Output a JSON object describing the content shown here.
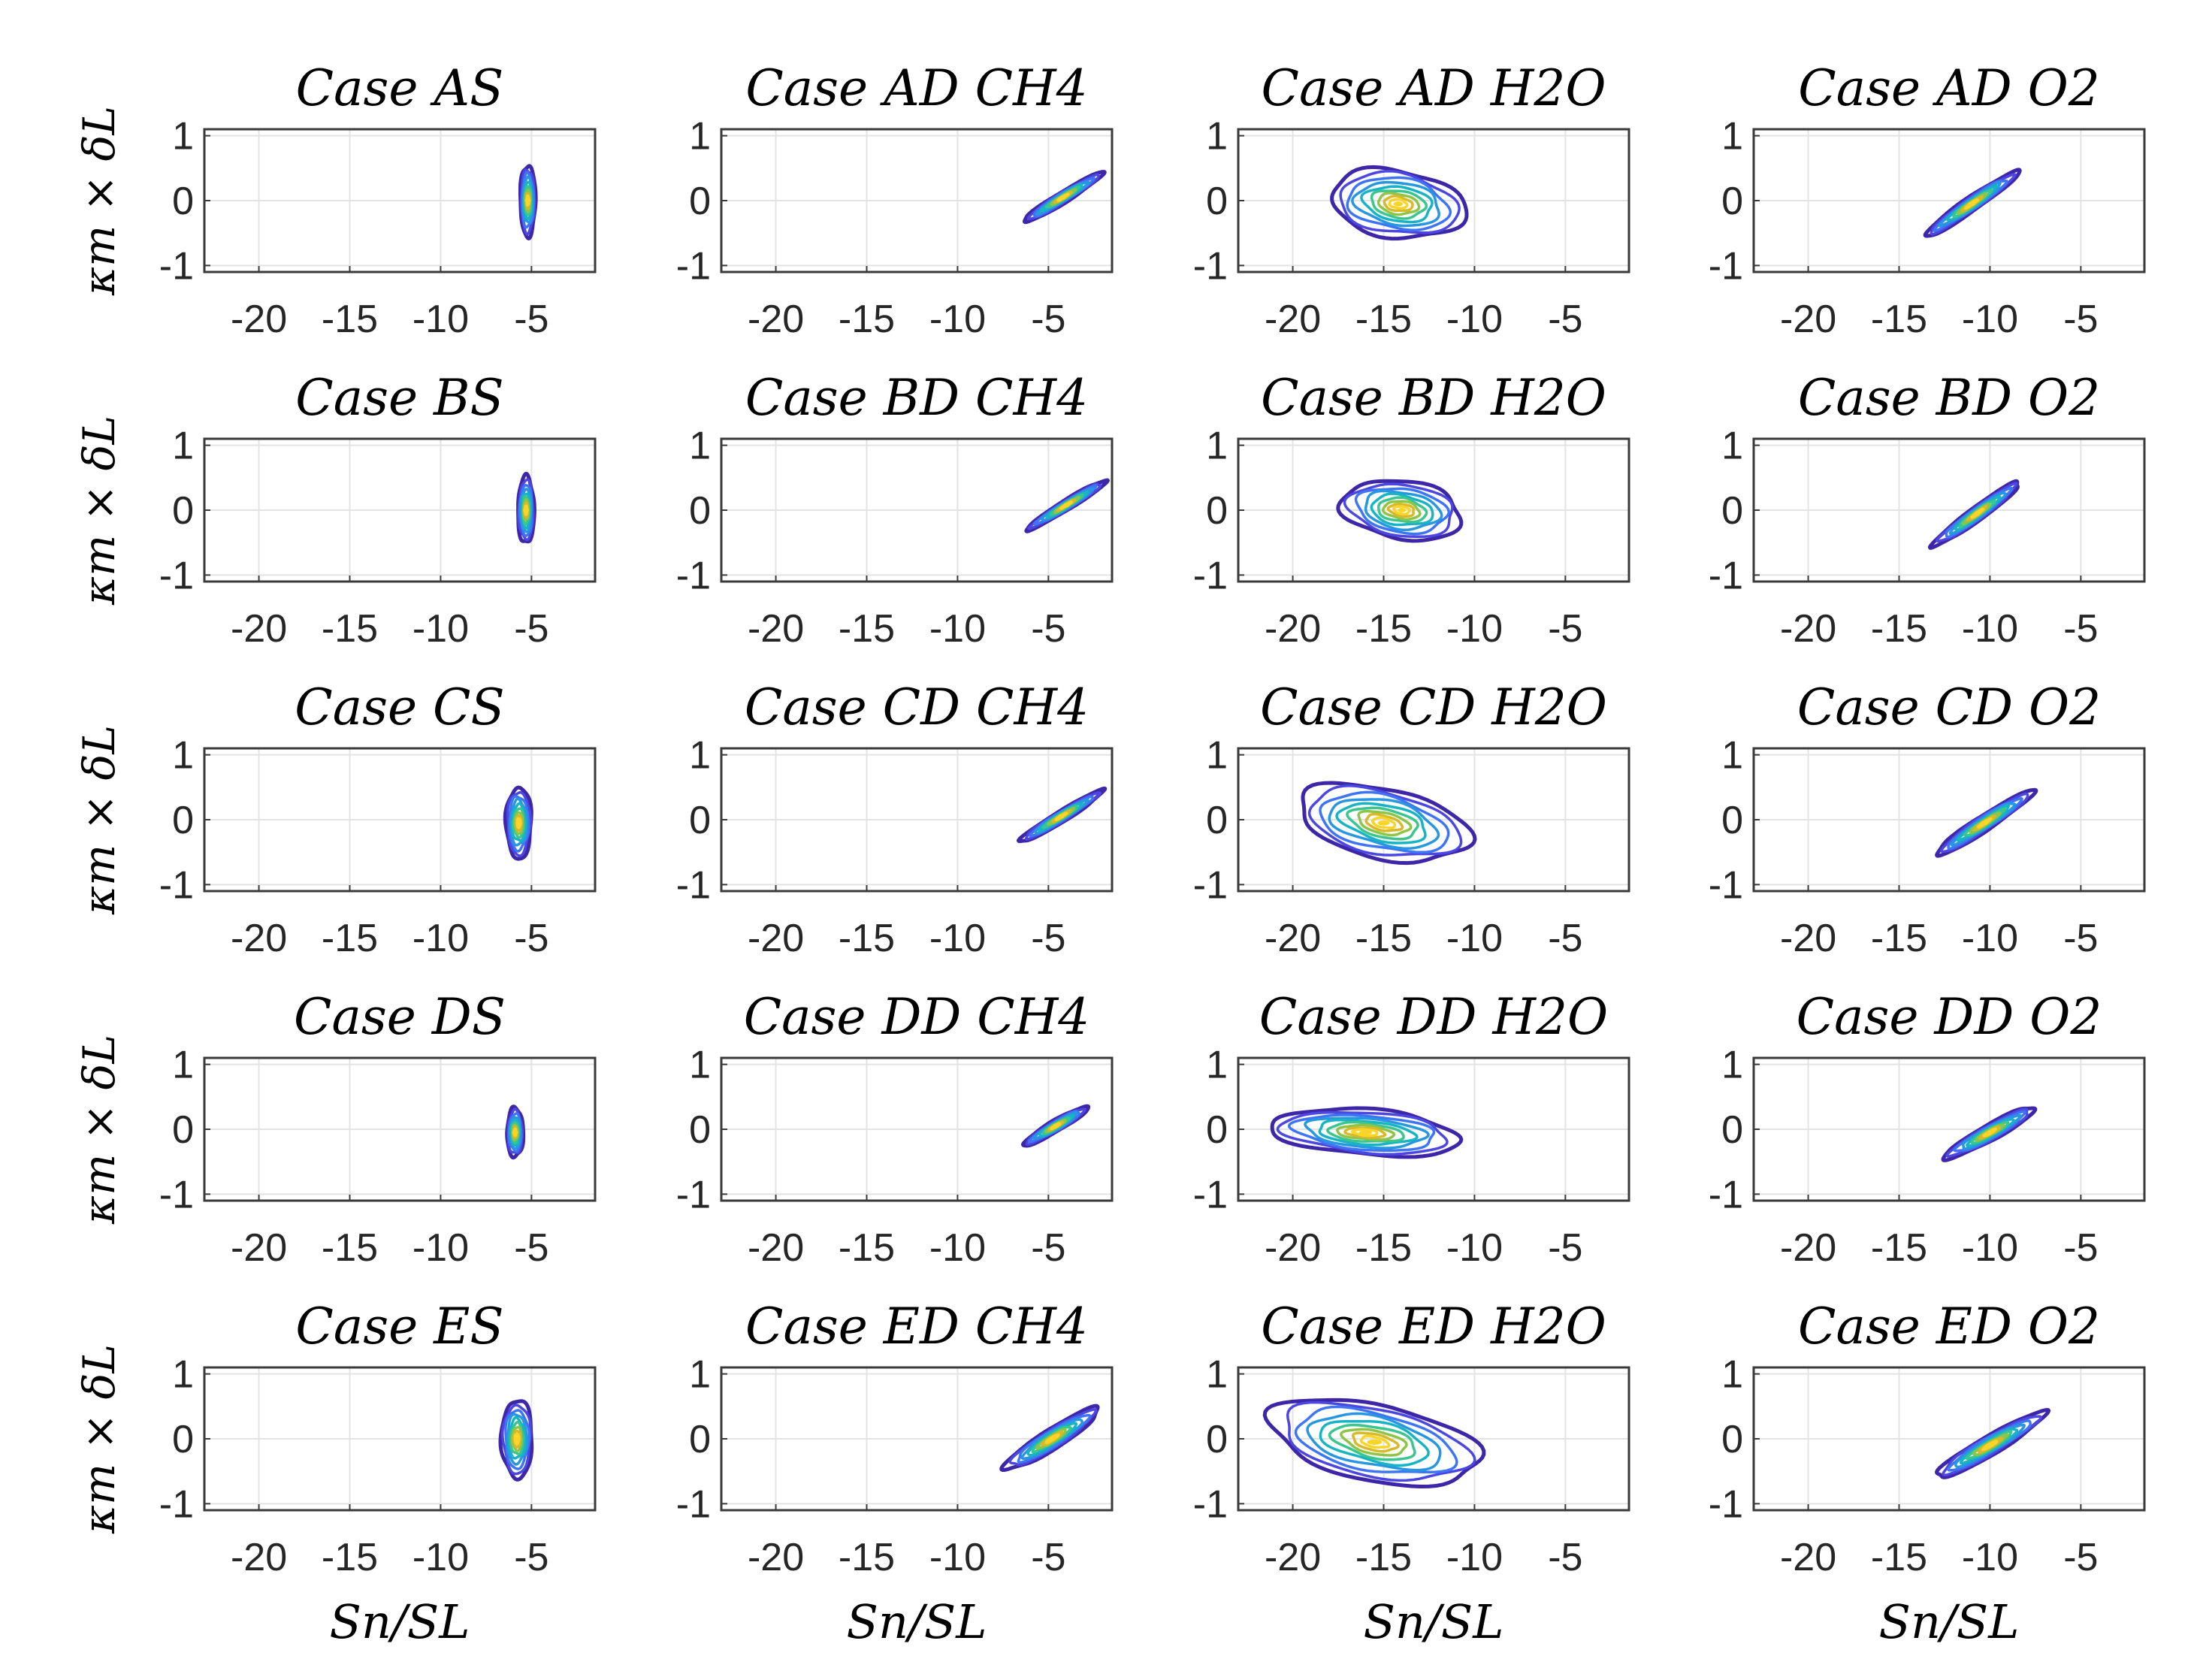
{
  "figure": {
    "x_label": "Sn/SL",
    "y_label": "κm × δL",
    "x_ticks": [
      "-20",
      "-15",
      "-10",
      "-5"
    ],
    "y_ticks": [
      "1",
      "0",
      "-1"
    ]
  },
  "palette": [
    "#3d26a8",
    "#4b47e0",
    "#3e75f6",
    "#2797e0",
    "#18b4c4",
    "#3bc58f",
    "#8ec548",
    "#d8b92a",
    "#f9d52a"
  ],
  "chart_data": [
    {
      "type": "contour",
      "title": "Case AS",
      "xlim": [
        -23,
        -1.5
      ],
      "ylim": [
        -1.1,
        1.1
      ],
      "x_ticks": [
        -20,
        -15,
        -10,
        -5
      ],
      "y_ticks": [
        -1,
        0,
        1
      ],
      "density_center": [
        -5.2,
        0.0
      ],
      "density_spread": [
        0.42,
        0.55
      ],
      "tilt_slope": 0.0
    },
    {
      "type": "contour",
      "title": "Case AD CH4",
      "xlim": [
        -23,
        -1.5
      ],
      "ylim": [
        -1.1,
        1.1
      ],
      "x_ticks": [
        -20,
        -15,
        -10,
        -5
      ],
      "y_ticks": [
        -1,
        0,
        1
      ],
      "density_center": [
        -4.2,
        0.05
      ],
      "density_spread": [
        2.2,
        0.1
      ],
      "tilt_slope": 0.17
    },
    {
      "type": "contour",
      "title": "Case AD H2O",
      "xlim": [
        -23,
        -1.5
      ],
      "ylim": [
        -1.1,
        1.1
      ],
      "x_ticks": [
        -20,
        -15,
        -10,
        -5
      ],
      "y_ticks": [
        -1,
        0,
        1
      ],
      "density_center": [
        -14.2,
        -0.05
      ],
      "density_spread": [
        3.7,
        0.52
      ],
      "tilt_slope": -0.03
    },
    {
      "type": "contour",
      "title": "Case AD O2",
      "xlim": [
        -23,
        -1.5
      ],
      "ylim": [
        -1.1,
        1.1
      ],
      "x_ticks": [
        -20,
        -15,
        -10,
        -5
      ],
      "y_ticks": [
        -1,
        0,
        1
      ],
      "density_center": [
        -11.0,
        -0.05
      ],
      "density_spread": [
        2.6,
        0.13
      ],
      "tilt_slope": 0.19
    },
    {
      "type": "contour",
      "title": "Case BS",
      "xlim": [
        -23,
        -1.5
      ],
      "ylim": [
        -1.1,
        1.1
      ],
      "x_ticks": [
        -20,
        -15,
        -10,
        -5
      ],
      "y_ticks": [
        -1,
        0,
        1
      ],
      "density_center": [
        -5.3,
        0.0
      ],
      "density_spread": [
        0.45,
        0.52
      ],
      "tilt_slope": 0.0
    },
    {
      "type": "contour",
      "title": "Case BD CH4",
      "xlim": [
        -23,
        -1.5
      ],
      "ylim": [
        -1.1,
        1.1
      ],
      "x_ticks": [
        -20,
        -15,
        -10,
        -5
      ],
      "y_ticks": [
        -1,
        0,
        1
      ],
      "density_center": [
        -4.0,
        0.08
      ],
      "density_spread": [
        2.2,
        0.09
      ],
      "tilt_slope": 0.17
    },
    {
      "type": "contour",
      "title": "Case BD H2O",
      "xlim": [
        -23,
        -1.5
      ],
      "ylim": [
        -1.1,
        1.1
      ],
      "x_ticks": [
        -20,
        -15,
        -10,
        -5
      ],
      "y_ticks": [
        -1,
        0,
        1
      ],
      "density_center": [
        -14.0,
        0.0
      ],
      "density_spread": [
        3.3,
        0.45
      ],
      "tilt_slope": -0.03
    },
    {
      "type": "contour",
      "title": "Case BD O2",
      "xlim": [
        -23,
        -1.5
      ],
      "ylim": [
        -1.1,
        1.1
      ],
      "x_ticks": [
        -20,
        -15,
        -10,
        -5
      ],
      "y_ticks": [
        -1,
        0,
        1
      ],
      "density_center": [
        -10.7,
        -0.05
      ],
      "density_spread": [
        2.4,
        0.13
      ],
      "tilt_slope": 0.2
    },
    {
      "type": "contour",
      "title": "Case CS",
      "xlim": [
        -23,
        -1.5
      ],
      "ylim": [
        -1.1,
        1.1
      ],
      "x_ticks": [
        -20,
        -15,
        -10,
        -5
      ],
      "y_ticks": [
        -1,
        0,
        1
      ],
      "density_center": [
        -5.7,
        -0.05
      ],
      "density_spread": [
        0.7,
        0.55
      ],
      "tilt_slope": 0.0
    },
    {
      "type": "contour",
      "title": "Case CD CH4",
      "xlim": [
        -23,
        -1.5
      ],
      "ylim": [
        -1.1,
        1.1
      ],
      "x_ticks": [
        -20,
        -15,
        -10,
        -5
      ],
      "y_ticks": [
        -1,
        0,
        1
      ],
      "density_center": [
        -4.3,
        0.05
      ],
      "density_spread": [
        2.3,
        0.1
      ],
      "tilt_slope": 0.17
    },
    {
      "type": "contour",
      "title": "Case CD H2O",
      "xlim": [
        -23,
        -1.5
      ],
      "ylim": [
        -1.1,
        1.1
      ],
      "x_ticks": [
        -20,
        -15,
        -10,
        -5
      ],
      "y_ticks": [
        -1,
        0,
        1
      ],
      "density_center": [
        -15.0,
        -0.05
      ],
      "density_spread": [
        4.7,
        0.55
      ],
      "tilt_slope": -0.05
    },
    {
      "type": "contour",
      "title": "Case CD O2",
      "xlim": [
        -23,
        -1.5
      ],
      "ylim": [
        -1.1,
        1.1
      ],
      "x_ticks": [
        -20,
        -15,
        -10,
        -5
      ],
      "y_ticks": [
        -1,
        0,
        1
      ],
      "density_center": [
        -10.3,
        -0.05
      ],
      "density_spread": [
        2.7,
        0.14
      ],
      "tilt_slope": 0.18
    },
    {
      "type": "contour",
      "title": "Case DS",
      "xlim": [
        -23,
        -1.5
      ],
      "ylim": [
        -1.1,
        1.1
      ],
      "x_ticks": [
        -20,
        -15,
        -10,
        -5
      ],
      "y_ticks": [
        -1,
        0,
        1
      ],
      "density_center": [
        -5.9,
        -0.05
      ],
      "density_spread": [
        0.45,
        0.38
      ],
      "tilt_slope": 0.0
    },
    {
      "type": "contour",
      "title": "Case DD CH4",
      "xlim": [
        -23,
        -1.5
      ],
      "ylim": [
        -1.1,
        1.1
      ],
      "x_ticks": [
        -20,
        -15,
        -10,
        -5
      ],
      "y_ticks": [
        -1,
        0,
        1
      ],
      "density_center": [
        -4.6,
        0.05
      ],
      "density_spread": [
        1.8,
        0.1
      ],
      "tilt_slope": 0.16
    },
    {
      "type": "contour",
      "title": "Case DD H2O",
      "xlim": [
        -23,
        -1.5
      ],
      "ylim": [
        -1.1,
        1.1
      ],
      "x_ticks": [
        -20,
        -15,
        -10,
        -5
      ],
      "y_ticks": [
        -1,
        0,
        1
      ],
      "density_center": [
        -16.0,
        -0.05
      ],
      "density_spread": [
        5.2,
        0.35
      ],
      "tilt_slope": -0.02
    },
    {
      "type": "contour",
      "title": "Case DD O2",
      "xlim": [
        -23,
        -1.5
      ],
      "ylim": [
        -1.1,
        1.1
      ],
      "x_ticks": [
        -20,
        -15,
        -10,
        -5
      ],
      "y_ticks": [
        -1,
        0,
        1
      ],
      "density_center": [
        -10.0,
        -0.05
      ],
      "density_spread": [
        2.5,
        0.14
      ],
      "tilt_slope": 0.15
    },
    {
      "type": "contour",
      "title": "Case ES",
      "xlim": [
        -23,
        -1.5
      ],
      "ylim": [
        -1.1,
        1.1
      ],
      "x_ticks": [
        -20,
        -15,
        -10,
        -5
      ],
      "y_ticks": [
        -1,
        0,
        1
      ],
      "density_center": [
        -5.8,
        0.0
      ],
      "density_spread": [
        0.85,
        0.6
      ],
      "tilt_slope": 0.0
    },
    {
      "type": "contour",
      "title": "Case ED CH4",
      "xlim": [
        -23,
        -1.5
      ],
      "ylim": [
        -1.1,
        1.1
      ],
      "x_ticks": [
        -20,
        -15,
        -10,
        -5
      ],
      "y_ticks": [
        -1,
        0,
        1
      ],
      "density_center": [
        -4.8,
        0.0
      ],
      "density_spread": [
        2.6,
        0.18
      ],
      "tilt_slope": 0.17
    },
    {
      "type": "contour",
      "title": "Case ED H2O",
      "xlim": [
        -23,
        -1.5
      ],
      "ylim": [
        -1.1,
        1.1
      ],
      "x_ticks": [
        -20,
        -15,
        -10,
        -5
      ],
      "y_ticks": [
        -1,
        0,
        1
      ],
      "density_center": [
        -15.5,
        -0.05
      ],
      "density_spread": [
        5.8,
        0.6
      ],
      "tilt_slope": -0.05
    },
    {
      "type": "contour",
      "title": "Case ED O2",
      "xlim": [
        -23,
        -1.5
      ],
      "ylim": [
        -1.1,
        1.1
      ],
      "x_ticks": [
        -20,
        -15,
        -10,
        -5
      ],
      "y_ticks": [
        -1,
        0,
        1
      ],
      "density_center": [
        -10.0,
        -0.1
      ],
      "density_spread": [
        3.0,
        0.17
      ],
      "tilt_slope": 0.16
    }
  ]
}
